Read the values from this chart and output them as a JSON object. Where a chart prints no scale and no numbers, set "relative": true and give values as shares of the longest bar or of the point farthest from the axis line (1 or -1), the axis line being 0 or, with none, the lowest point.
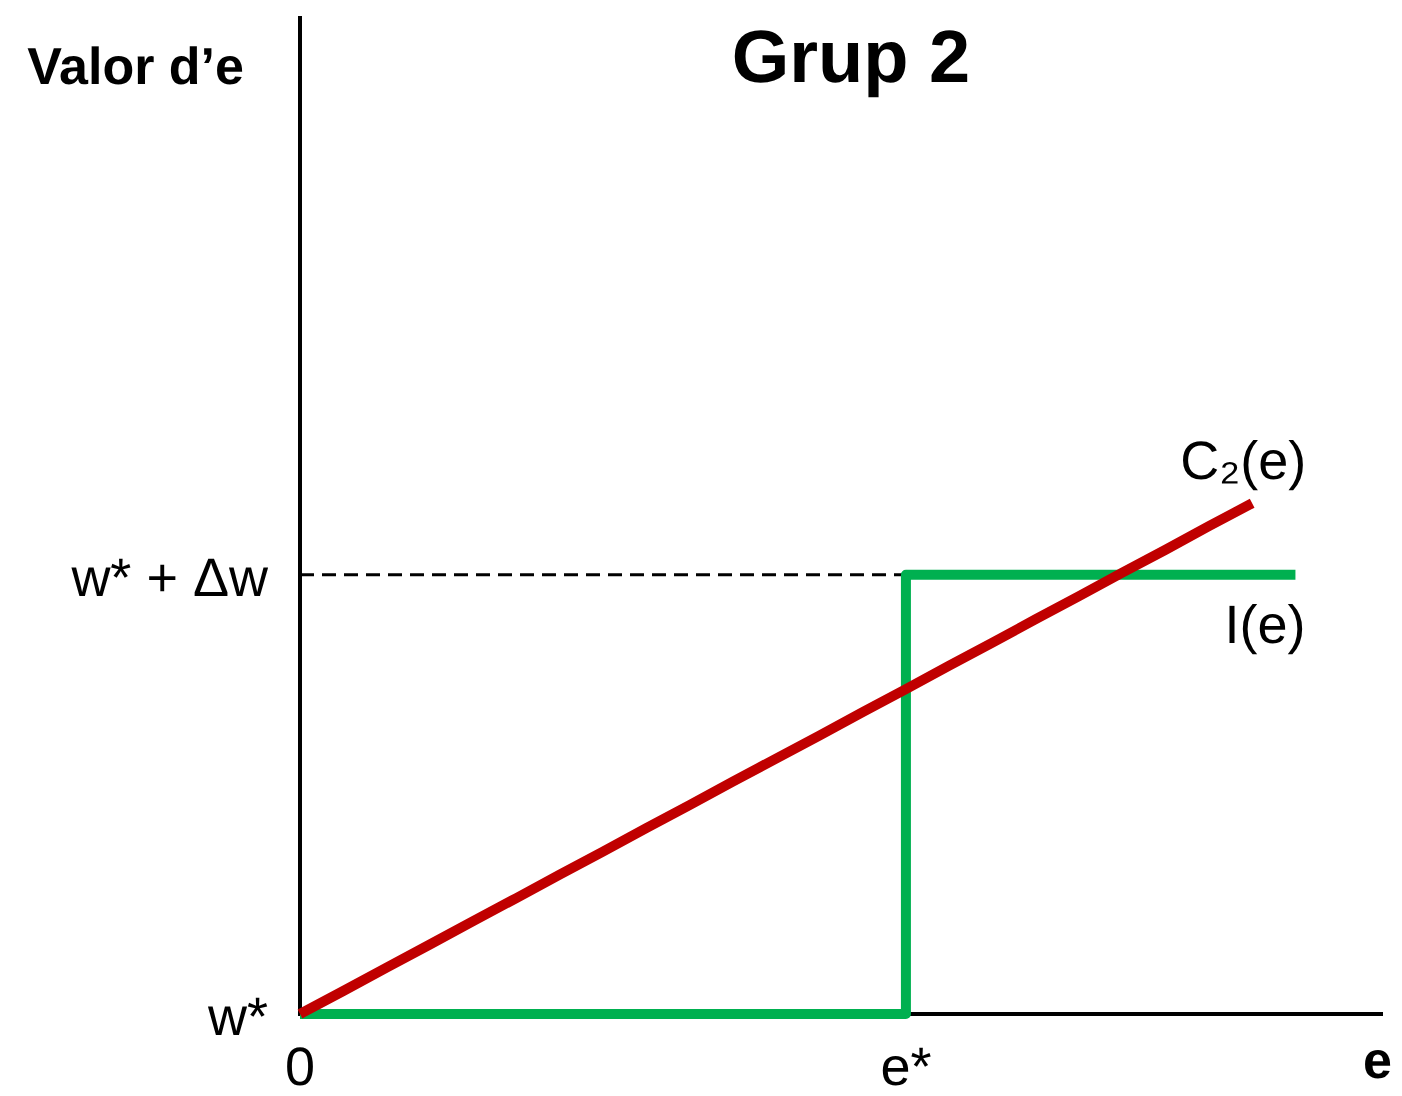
{
  "chart_data": {
    "type": "line",
    "relative": true,
    "title": "Grup 2",
    "xlabel": "e",
    "categories": [
      "0",
      null,
      null,
      null,
      null,
      null,
      null,
      null,
      null,
      null,
      null,
      null,
      null,
      null,
      "e*",
      null,
      null,
      null,
      null,
      null,
      null,
      null,
      null,
      null,
      null,
      null
    ],
    "series": [
      {
        "name": "C₂(e)",
        "color": "#c00000",
        "values": [
          0,
          0.045,
          0.091,
          0.136,
          0.182,
          0.227,
          0.273,
          0.318,
          0.364,
          0.409,
          0.455,
          0.5,
          0.545,
          0.591,
          0.636,
          0.682,
          0.727,
          0.773,
          0.818,
          0.864,
          0.909,
          0.955,
          1,
          null,
          null,
          null
        ]
      },
      {
        "name": "I(e)",
        "type": "step",
        "color": "#00b050",
        "values": [
          0,
          0,
          0,
          0,
          0,
          0,
          0,
          0,
          0,
          0,
          0,
          0,
          0,
          0,
          0.86,
          0.86,
          0.86,
          0.86,
          0.86,
          0.86,
          0.86,
          0.86,
          0.86,
          0.86,
          null,
          null
        ]
      },
      {
        "color": "#000000",
        "line_style": "dashed",
        "values": [
          0.86,
          0.86,
          0.86,
          0.86,
          0.86,
          0.86,
          0.86,
          0.86,
          0.86,
          0.86,
          0.86,
          0.86,
          0.86,
          0.86,
          0.86,
          null,
          null,
          null,
          null,
          null,
          null,
          null,
          null,
          null,
          null,
          null
        ]
      }
    ],
    "annotations": [
      "Valor d’e",
      {
        "text": "w*",
        "x": "0",
        "y": 0
      },
      {
        "text": "w* + Δw",
        "x": "0",
        "y": 0.86
      }
    ],
    "legend": false,
    "marker": "none"
  }
}
